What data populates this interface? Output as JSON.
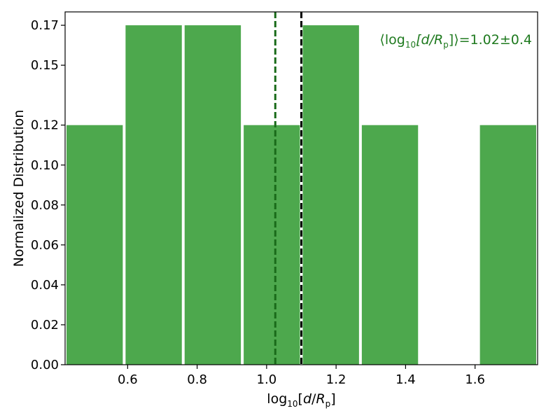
{
  "chart_data": {
    "type": "bar",
    "subtype": "histogram",
    "bins": [
      {
        "x0": 0.42,
        "x1": 0.59,
        "value": 0.12
      },
      {
        "x0": 0.59,
        "x1": 0.76,
        "value": 0.17
      },
      {
        "x0": 0.76,
        "x1": 0.93,
        "value": 0.17
      },
      {
        "x0": 0.93,
        "x1": 1.1,
        "value": 0.12
      },
      {
        "x0": 1.1,
        "x1": 1.27,
        "value": 0.17
      },
      {
        "x0": 1.27,
        "x1": 1.44,
        "value": 0.12
      },
      {
        "x0": 1.44,
        "x1": 1.61,
        "value": 0.0
      },
      {
        "x0": 1.61,
        "x1": 1.78,
        "value": 0.12
      }
    ],
    "bar_color": "#4da84d",
    "xlim": [
      0.42,
      1.78
    ],
    "ylim": [
      0,
      0.1767
    ],
    "xticks": [
      0.6,
      0.8,
      1.0,
      1.2,
      1.4,
      1.6
    ],
    "xtick_labels": [
      "0.6",
      "0.8",
      "1.0",
      "1.2",
      "1.4",
      "1.6"
    ],
    "yticks": [
      0.0,
      0.02,
      0.04,
      0.06,
      0.08,
      0.1,
      0.12,
      0.15,
      0.17
    ],
    "ytick_labels": [
      "0.00",
      "0.02",
      "0.04",
      "0.06",
      "0.08",
      "0.10",
      "0.12",
      "0.15",
      "0.17"
    ],
    "xlabel": {
      "base": "log",
      "sub": "10",
      "bracket_open": "[",
      "d": "d",
      "slash": "/",
      "R": "R",
      "R_sub": "p",
      "bracket_close": "]"
    },
    "ylabel": "Normalized Distribution",
    "vlines": [
      {
        "x": 1.025,
        "color": "#1a6b1a",
        "style": "dashed"
      },
      {
        "x": 1.1,
        "color": "#000000",
        "style": "dashed"
      }
    ],
    "annotation": {
      "color": "#1f7a1f",
      "open": "⟨log",
      "sub": "10",
      "mid": "[d/R",
      "sub2": "p",
      "close": "]⟩",
      "value": "=1.02±0.4"
    },
    "grid": false
  }
}
